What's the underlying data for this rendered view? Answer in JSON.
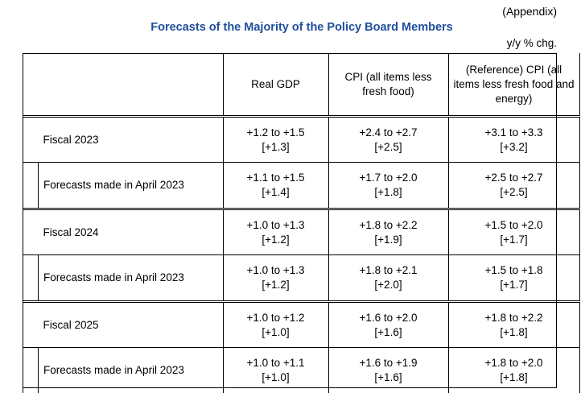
{
  "appendix": "(Appendix)",
  "title": "Forecasts of the Majority of the Policy Board Members",
  "unit": "y/y % chg.",
  "columns": [
    "Real GDP",
    "CPI (all items less fresh food)",
    "(Reference) CPI (all items less fresh food and energy)"
  ],
  "rows": [
    {
      "label": "Fiscal 2023",
      "type": "main",
      "cells": [
        {
          "range": "+1.2 to +1.5",
          "median": "[+1.3]"
        },
        {
          "range": "+2.4 to +2.7",
          "median": "[+2.5]"
        },
        {
          "range": "+3.1 to +3.3",
          "median": "[+3.2]"
        }
      ]
    },
    {
      "label": "Forecasts made in April 2023",
      "type": "sub",
      "cells": [
        {
          "range": "+1.1 to +1.5",
          "median": "[+1.4]"
        },
        {
          "range": "+1.7 to +2.0",
          "median": "[+1.8]"
        },
        {
          "range": "+2.5 to +2.7",
          "median": "[+2.5]"
        }
      ]
    },
    {
      "label": "Fiscal 2024",
      "type": "main",
      "cells": [
        {
          "range": "+1.0 to +1.3",
          "median": "[+1.2]"
        },
        {
          "range": "+1.8 to +2.2",
          "median": "[+1.9]"
        },
        {
          "range": "+1.5 to +2.0",
          "median": "[+1.7]"
        }
      ]
    },
    {
      "label": "Forecasts made in April 2023",
      "type": "sub",
      "cells": [
        {
          "range": "+1.0 to +1.3",
          "median": "[+1.2]"
        },
        {
          "range": "+1.8 to +2.1",
          "median": "[+2.0]"
        },
        {
          "range": "+1.5 to +1.8",
          "median": "[+1.7]"
        }
      ]
    },
    {
      "label": "Fiscal 2025",
      "type": "main",
      "cells": [
        {
          "range": "+1.0 to +1.2",
          "median": "[+1.0]"
        },
        {
          "range": "+1.6 to +2.0",
          "median": "[+1.6]"
        },
        {
          "range": "+1.8 to +2.2",
          "median": "[+1.8]"
        }
      ]
    },
    {
      "label": "Forecasts made in April 2023",
      "type": "sub",
      "cells": [
        {
          "range": "+1.0 to +1.1",
          "median": "[+1.0]"
        },
        {
          "range": "+1.6 to +1.9",
          "median": "[+1.6]"
        },
        {
          "range": "+1.8 to +2.0",
          "median": "[+1.8]"
        }
      ]
    }
  ]
}
